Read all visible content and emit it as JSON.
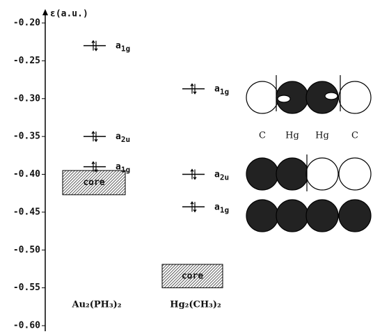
{
  "chart_data": {
    "type": "energy-level",
    "y_label": "ε(a.u.)",
    "ylim": [
      -0.6,
      -0.2
    ],
    "yticks": [
      {
        "value": -0.2,
        "label": "-0.20"
      },
      {
        "value": -0.25,
        "label": "-0.25"
      },
      {
        "value": -0.3,
        "label": "-0.30"
      },
      {
        "value": -0.35,
        "label": "-0.35"
      },
      {
        "value": -0.4,
        "label": "-0.40"
      },
      {
        "value": -0.45,
        "label": "-0.45"
      },
      {
        "value": -0.5,
        "label": "-0.50"
      },
      {
        "value": -0.55,
        "label": "-0.55"
      },
      {
        "value": -0.6,
        "label": "-0.60"
      }
    ],
    "series": [
      {
        "name": "Au₂(PH₃)₂",
        "levels": [
          {
            "energy": -0.23,
            "symmetry": "a",
            "subscript": "1g"
          },
          {
            "energy": -0.35,
            "symmetry": "a",
            "subscript": "2u"
          },
          {
            "energy": -0.39,
            "symmetry": "a",
            "subscript": "1g"
          }
        ],
        "core_label": "core",
        "core": [
          -0.395,
          -0.427
        ]
      },
      {
        "name": "Hg₂(CH₃)₂",
        "levels": [
          {
            "energy": -0.287,
            "symmetry": "a",
            "subscript": "1g"
          },
          {
            "energy": -0.4,
            "symmetry": "a",
            "subscript": "2u"
          },
          {
            "energy": -0.443,
            "symmetry": "a",
            "subscript": "1g"
          }
        ],
        "core_label": "core",
        "core": [
          -0.519,
          -0.55
        ]
      }
    ],
    "atoms": [
      "C",
      "Hg",
      "Hg",
      "C"
    ]
  }
}
